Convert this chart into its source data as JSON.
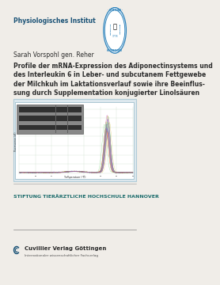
{
  "bg_color": "#f0ede8",
  "title_institute": "Physiologisches Institut",
  "author": "Sarah Vorspohl gen. Reher",
  "title_line1": "Profile der mRNA-Expression des Adiponectinsystems und",
  "title_line2": "des Interleukin 6 in Leber- und subcutanem Fettgewebe",
  "title_line3": "der Milchkuh im Laktationsverlauf sowie ihre Beeinflus-",
  "title_line4": "sung durch Supplementation konjugierter Linolsäuren",
  "footer_line1": "STIFTUNG TIERÄRZTLICHE HOCHSCHULE HANNOVER",
  "footer_line2": "Cuvillier Verlag Göttingen",
  "footer_line3": "Internationaler wissenschaftlicher Fachverlag",
  "chart_xlabel": "Temperature (°C)",
  "chart_ylabel": "Fluorescence (dF)",
  "text_color_dark": "#2c2c2c",
  "text_color_blue": "#1a5276",
  "text_color_teal": "#1a6b6b",
  "chart_bg": "#ffffff",
  "chart_border": "#aaccdd",
  "logo_circle_color": "#2980b9",
  "logo_ring_color": "#c8dff0"
}
